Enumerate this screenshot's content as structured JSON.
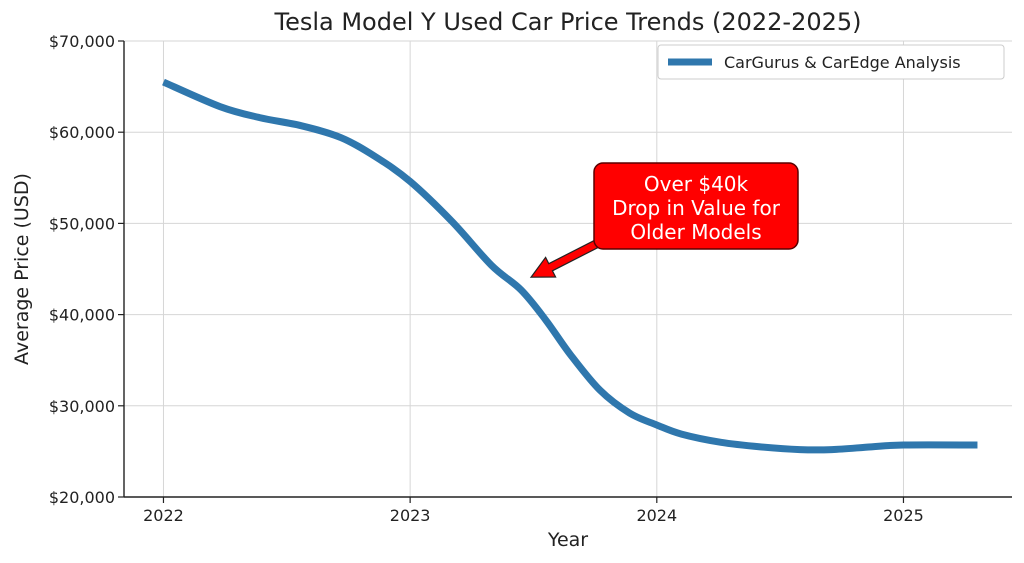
{
  "chart_data": {
    "type": "line",
    "title": "Tesla Model Y Used Car Price Trends (2022-2025)",
    "xlabel": "Year",
    "ylabel": "Average Price (USD)",
    "xlim": [
      2021.84,
      2025.44
    ],
    "ylim": [
      20000,
      70000
    ],
    "x_ticks": [
      2022,
      2023,
      2024,
      2025
    ],
    "x_tick_labels": [
      "2022",
      "2023",
      "2024",
      "2025"
    ],
    "y_ticks": [
      20000,
      30000,
      40000,
      50000,
      60000,
      70000
    ],
    "y_tick_labels": [
      "$20,000",
      "$30,000",
      "$40,000",
      "$50,000",
      "$60,000",
      "$70,000"
    ],
    "grid": true,
    "legend_position": "top-right",
    "series": [
      {
        "name": "CarGurus & CarEdge Analysis",
        "color": "#2f77ad",
        "x": [
          2022.0,
          2022.23,
          2022.39,
          2022.56,
          2022.72,
          2022.86,
          2023.0,
          2023.17,
          2023.33,
          2023.45,
          2023.55,
          2023.65,
          2023.77,
          2023.89,
          2024.0,
          2024.1,
          2024.26,
          2024.42,
          2024.58,
          2024.71,
          2024.87,
          2025.0,
          2025.3
        ],
        "y": [
          65500,
          62800,
          61600,
          60700,
          59400,
          57300,
          54600,
          50200,
          45400,
          42700,
          39400,
          35600,
          31700,
          29200,
          27900,
          26900,
          26000,
          25500,
          25200,
          25200,
          25500,
          25700,
          25700
        ]
      }
    ],
    "annotation": {
      "lines": [
        "Over $40k",
        "Drop in Value for",
        "Older Models"
      ],
      "arrow_target": {
        "x": 2023.49,
        "y": 44100
      },
      "box_color": "#ff0000",
      "text_color": "#ffffff"
    }
  }
}
